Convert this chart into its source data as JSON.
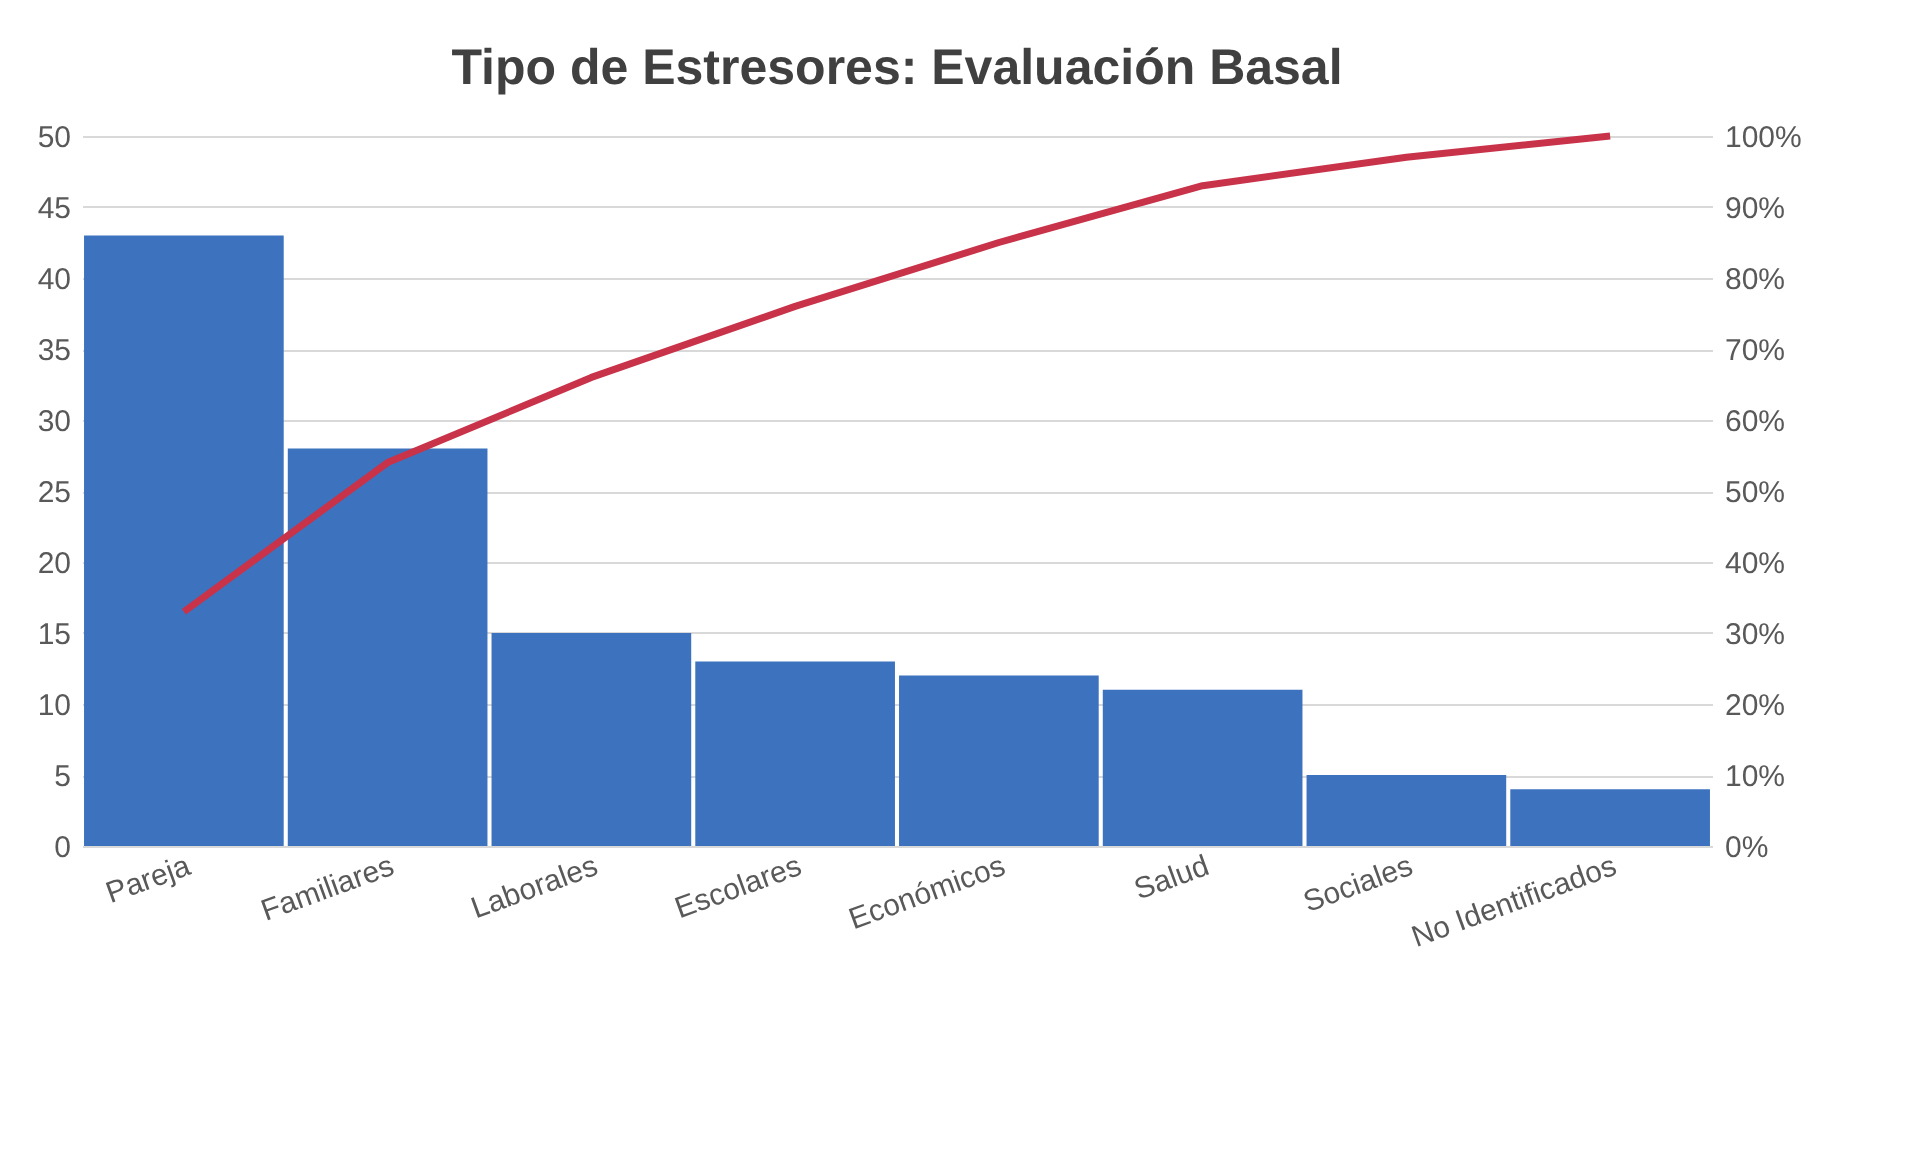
{
  "chart_data": {
    "type": "bar",
    "title": "Tipo de Estresores: Evaluación Basal",
    "categories": [
      "Pareja",
      "Familiares",
      "Laborales",
      "Escolares",
      "Económicos",
      "Salud",
      "Sociales",
      "No Identificados"
    ],
    "series": [
      {
        "color": "#3d72bf",
        "values": [
          43,
          28,
          15,
          13,
          12,
          11,
          5,
          4
        ]
      },
      {
        "type": "line",
        "axis": "y2",
        "color": "#c8334a",
        "values": [
          33,
          54,
          66,
          76,
          85,
          93,
          97,
          100
        ]
      }
    ],
    "ylim": [
      0,
      50
    ],
    "yticks": [
      0,
      5,
      10,
      15,
      20,
      25,
      30,
      35,
      40,
      45,
      50
    ],
    "y2lim": [
      0,
      100
    ],
    "y2ticks": [
      {
        "value": 0,
        "label": "0%"
      },
      {
        "value": 10,
        "label": "10%"
      },
      {
        "value": 20,
        "label": "20%"
      },
      {
        "value": 30,
        "label": "30%"
      },
      {
        "value": 40,
        "label": "40%"
      },
      {
        "value": 50,
        "label": "50%"
      },
      {
        "value": 60,
        "label": "60%"
      },
      {
        "value": 70,
        "label": "70%"
      },
      {
        "value": 80,
        "label": "80%"
      },
      {
        "value": 90,
        "label": "90%"
      },
      {
        "value": 100,
        "label": "100%"
      }
    ],
    "grid": "y"
  }
}
